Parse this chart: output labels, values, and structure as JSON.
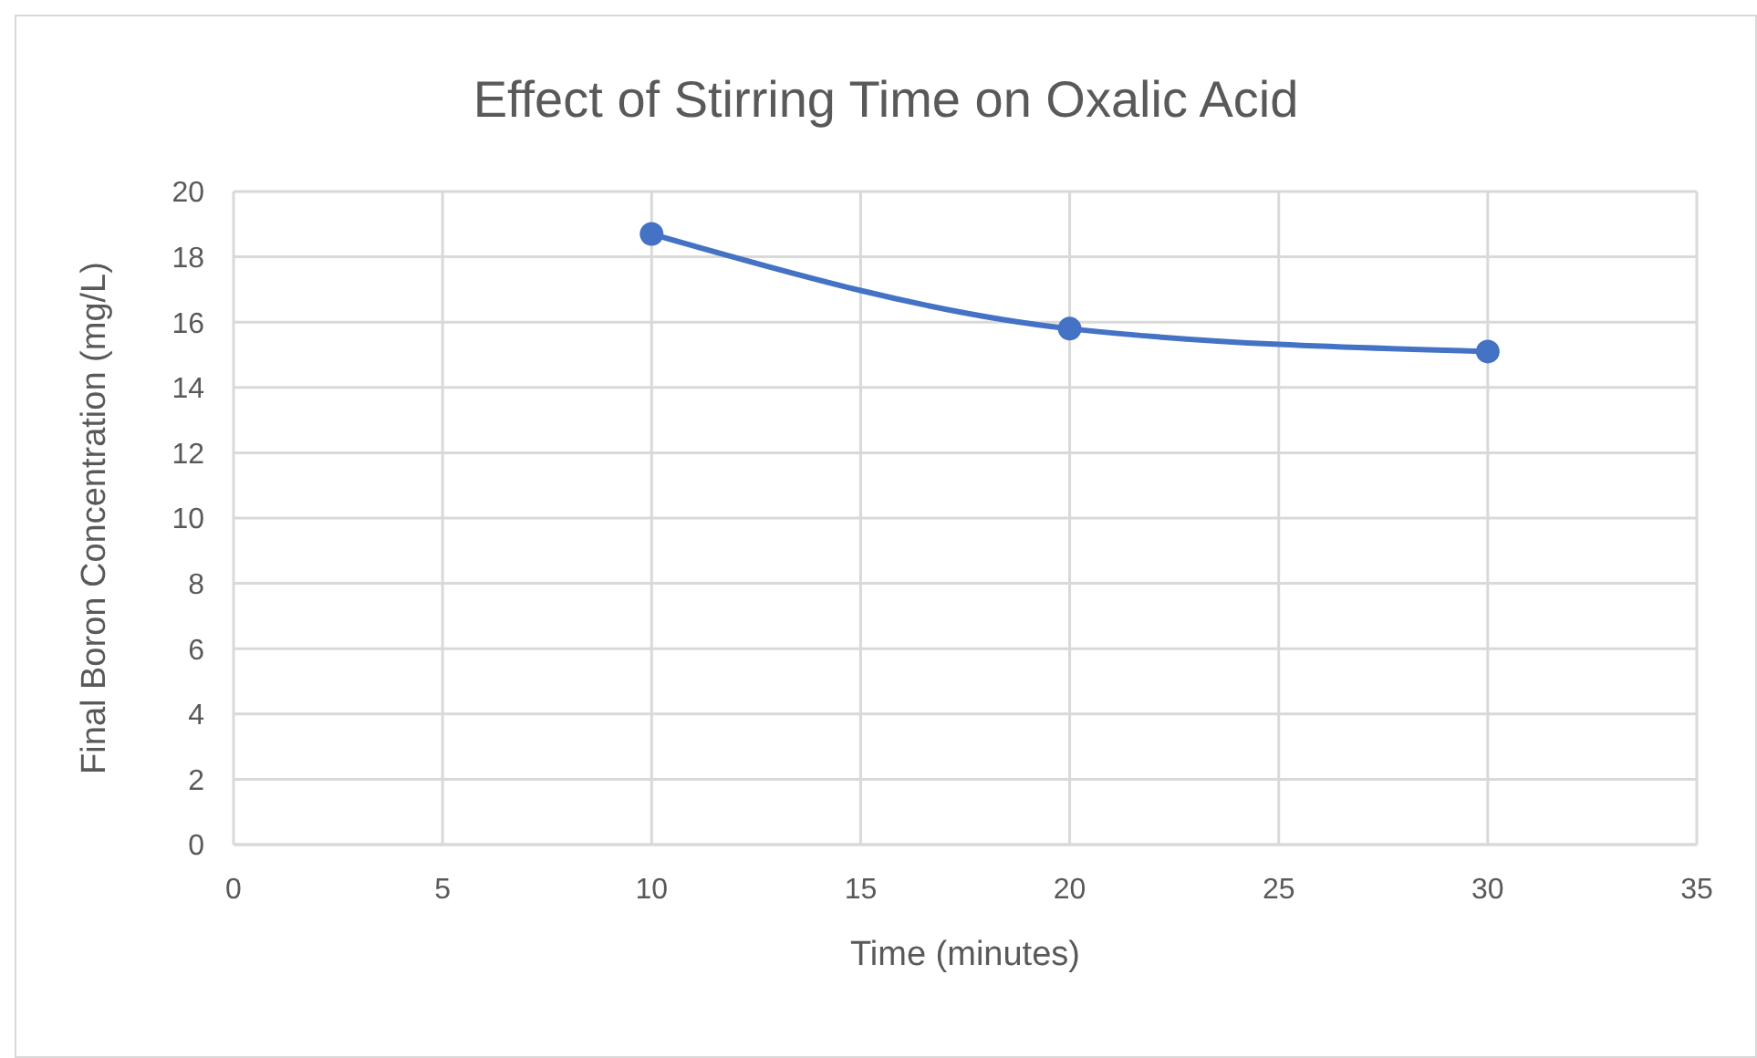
{
  "chart_data": {
    "type": "line",
    "title": "Effect of Stirring Time on Oxalic Acid",
    "xlabel": "Time (minutes)",
    "ylabel": "Final Boron Concentration (mg/L)",
    "x": [
      10,
      20,
      30
    ],
    "series": [
      {
        "color": "#4472c4",
        "values": [
          18.7,
          15.8,
          15.1
        ]
      }
    ],
    "xlim": [
      0,
      35
    ],
    "xticks": [
      0,
      5,
      10,
      15,
      20,
      25,
      30,
      35
    ],
    "ylim": [
      0,
      20
    ],
    "yticks": [
      0,
      2,
      4,
      6,
      8,
      10,
      12,
      14,
      16,
      18,
      20
    ],
    "grid": true,
    "marker": "circle",
    "line_style": "solid"
  }
}
